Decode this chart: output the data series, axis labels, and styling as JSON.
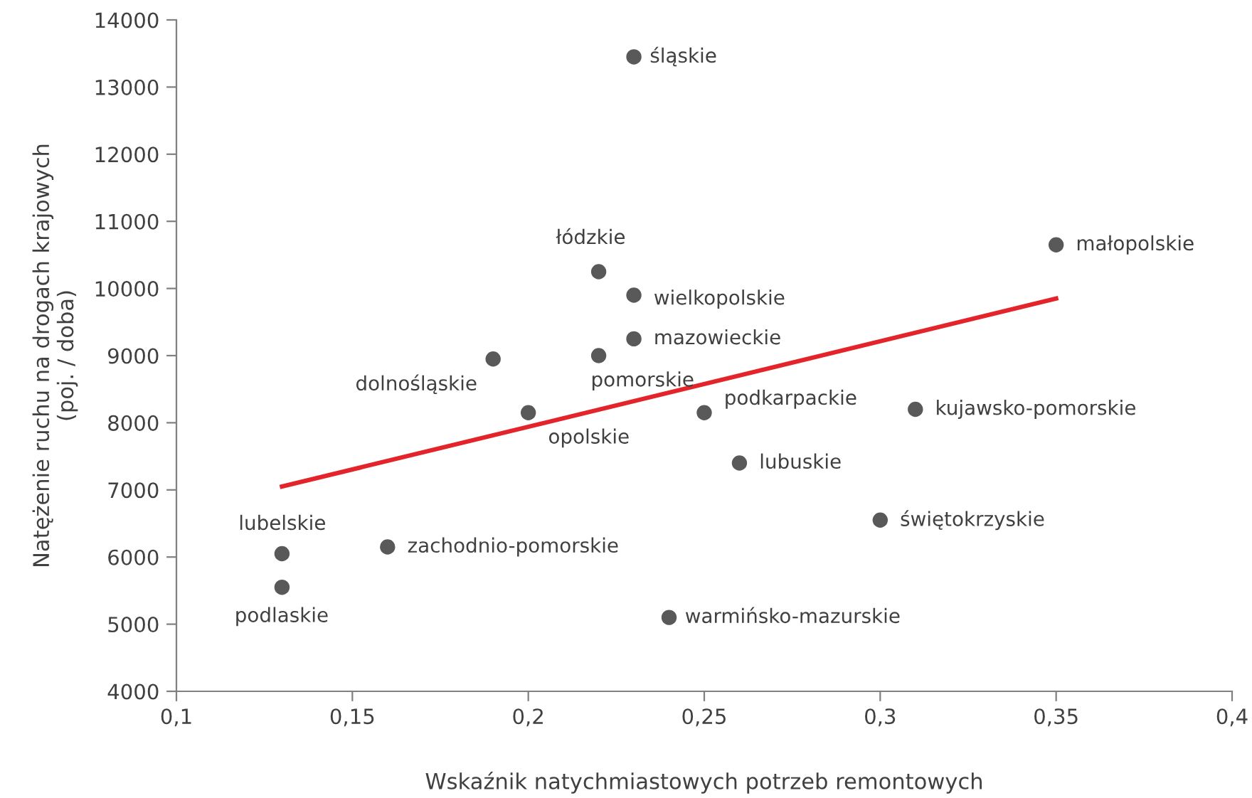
{
  "chart_data": {
    "type": "scatter",
    "xlabel": "Wskaźnik natychmiastowych potrzeb remontowych",
    "ylabel": "Natężenie ruchu na drogach krajowych\n(poj. / doba)",
    "series": [
      {
        "type": "scatter",
        "marker": "circle",
        "color": "#595959",
        "x": [
          0.23,
          0.22,
          0.23,
          0.23,
          0.22,
          0.19,
          0.2,
          0.25,
          0.31,
          0.26,
          0.35,
          0.3,
          0.13,
          0.13,
          0.16,
          0.24
        ],
        "values": [
          13450,
          10250,
          9900,
          9250,
          9000,
          8950,
          8150,
          8150,
          8200,
          7400,
          10650,
          6550,
          6050,
          5550,
          6150,
          5100
        ]
      },
      {
        "type": "line",
        "color": "#e3252b",
        "x": [
          0.13,
          0.35
        ],
        "values": [
          7050,
          9850
        ]
      }
    ],
    "annotations": [
      {
        "text": "śląskie",
        "x": 0.23,
        "y": 13450
      },
      {
        "text": "łódzkie",
        "x": 0.22,
        "y": 10250
      },
      {
        "text": "wielkopolskie",
        "x": 0.23,
        "y": 9900
      },
      {
        "text": "mazowieckie",
        "x": 0.23,
        "y": 9250
      },
      {
        "text": "pomorskie",
        "x": 0.22,
        "y": 9000
      },
      {
        "text": "dolnośląskie",
        "x": 0.19,
        "y": 8950
      },
      {
        "text": "opolskie",
        "x": 0.2,
        "y": 8150
      },
      {
        "text": "podkarpackie",
        "x": 0.25,
        "y": 8150
      },
      {
        "text": "kujawsko-pomorskie",
        "x": 0.31,
        "y": 8200
      },
      {
        "text": "lubuskie",
        "x": 0.26,
        "y": 7400
      },
      {
        "text": "małopolskie",
        "x": 0.35,
        "y": 10650
      },
      {
        "text": "świętokrzyskie",
        "x": 0.3,
        "y": 6550
      },
      {
        "text": "lubelskie",
        "x": 0.13,
        "y": 6050
      },
      {
        "text": "podlaskie",
        "x": 0.13,
        "y": 5550
      },
      {
        "text": "zachodnio-pomorskie",
        "x": 0.16,
        "y": 6150
      },
      {
        "text": "warmińsko-mazurskie",
        "x": 0.24,
        "y": 5100
      }
    ],
    "xlim": [
      0.1,
      0.4
    ],
    "xticks": [
      {
        "value": 0.1,
        "label": "0,1"
      },
      {
        "value": 0.15,
        "label": "0,15"
      },
      {
        "value": 0.2,
        "label": "0,2"
      },
      {
        "value": 0.25,
        "label": "0,25"
      },
      {
        "value": 0.3,
        "label": "0,3"
      },
      {
        "value": 0.35,
        "label": "0,35"
      },
      {
        "value": 0.4,
        "label": "0,4"
      }
    ],
    "ylim": [
      4000,
      14000
    ],
    "yticks": [
      4000,
      5000,
      6000,
      7000,
      8000,
      9000,
      10000,
      11000,
      12000,
      13000,
      14000
    ],
    "grid": false,
    "legend": false
  }
}
